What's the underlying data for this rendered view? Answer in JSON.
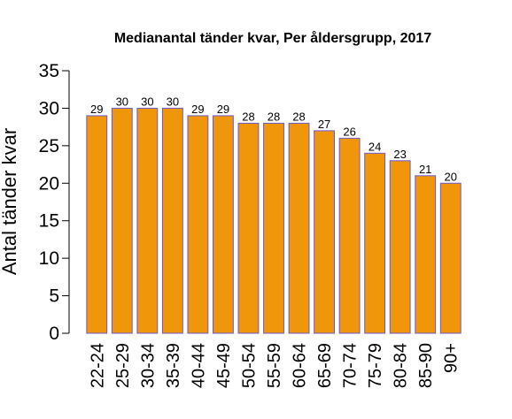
{
  "chart_data": {
    "type": "bar",
    "title": "Medianantal tänder kvar, Per åldersgrupp, 2017",
    "xlabel": "",
    "ylabel": "Antal tänder kvar",
    "ylim": [
      0,
      35
    ],
    "yticks": [
      0,
      5,
      10,
      15,
      20,
      25,
      30,
      35
    ],
    "grid": false,
    "legend": "none",
    "bar_color": "#F0960A",
    "bar_border_color": "#6A5ACD",
    "categories": [
      "22-24",
      "25-29",
      "30-34",
      "35-39",
      "40-44",
      "45-49",
      "50-54",
      "55-59",
      "60-64",
      "65-69",
      "70-74",
      "75-79",
      "80-84",
      "85-90",
      "90+"
    ],
    "values": [
      29,
      30,
      30,
      30,
      29,
      29,
      28,
      28,
      28,
      27,
      26,
      24,
      23,
      21,
      20
    ],
    "data_labels": [
      "29",
      "30",
      "30",
      "30",
      "29",
      "29",
      "28",
      "28",
      "28",
      "27",
      "26",
      "24",
      "23",
      "21",
      "20"
    ]
  }
}
